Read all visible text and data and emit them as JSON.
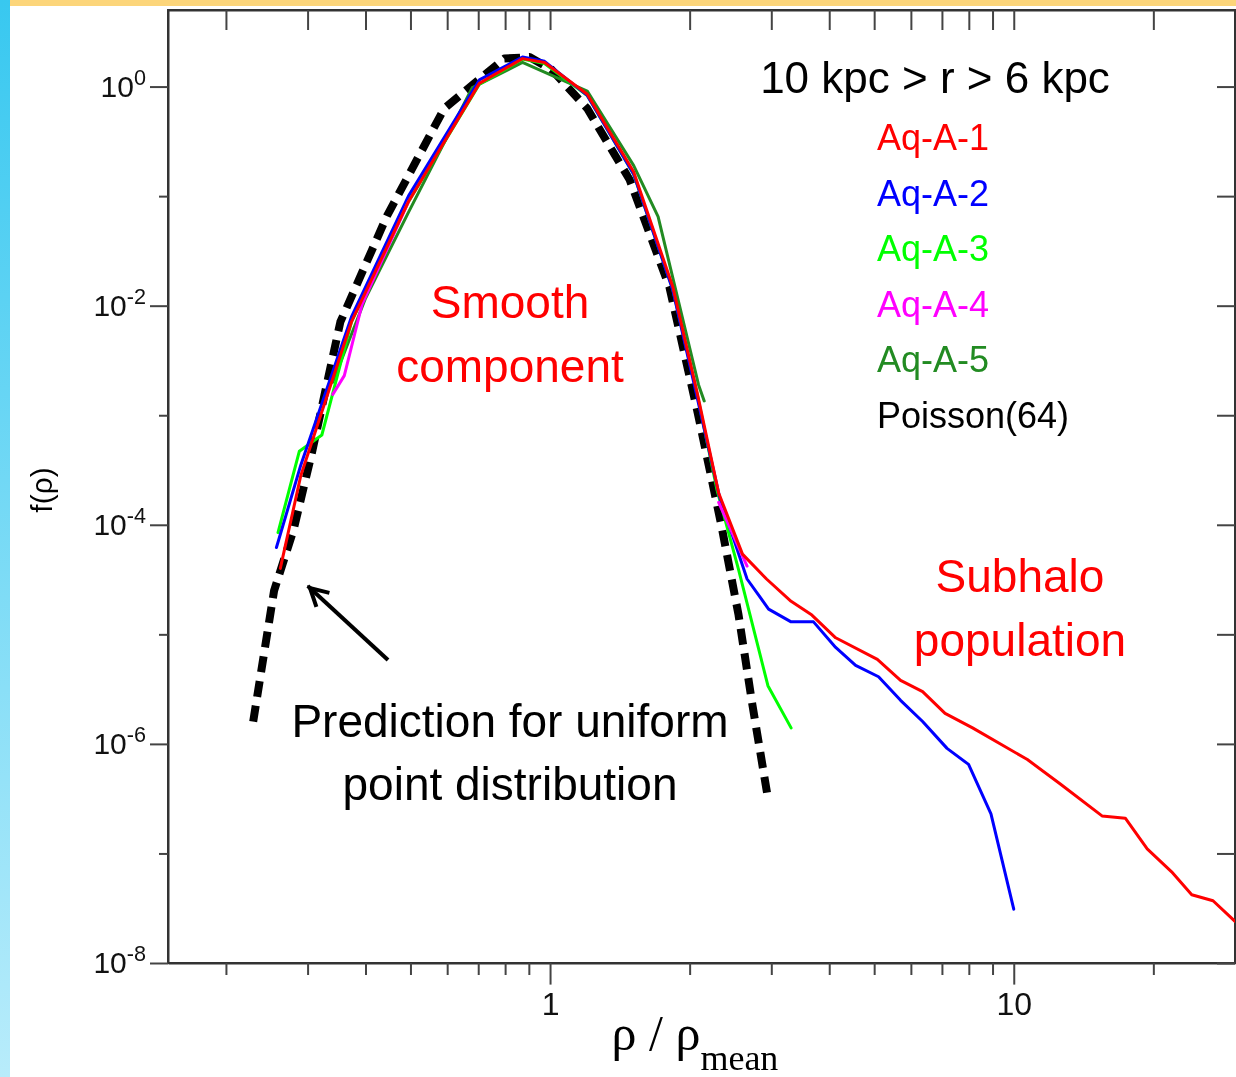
{
  "chart_data": {
    "type": "line",
    "log": "xy",
    "xlabel": "ρ / ρ$_{mean}$",
    "ylabel": "f(ρ)",
    "legend": "top right",
    "xlim": [
      0.15,
      30
    ],
    "ylim": [
      1e-08,
      5
    ],
    "xticks": [
      {
        "value": 0.2,
        "label": null
      },
      {
        "value": 0.3,
        "label": null
      },
      {
        "value": 0.4,
        "label": null
      },
      {
        "value": 0.5,
        "label": null
      },
      {
        "value": 0.6,
        "label": null
      },
      {
        "value": 0.7,
        "label": null
      },
      {
        "value": 0.8,
        "label": null
      },
      {
        "value": 0.9,
        "label": null
      },
      1,
      {
        "value": 2,
        "label": null
      },
      {
        "value": 3,
        "label": null
      },
      {
        "value": 4,
        "label": null
      },
      {
        "value": 5,
        "label": null
      },
      {
        "value": 6,
        "label": null
      },
      {
        "value": 7,
        "label": null
      },
      {
        "value": 8,
        "label": null
      },
      {
        "value": 9,
        "label": null
      },
      10,
      {
        "value": 20,
        "label": null
      }
    ],
    "yticks": [
      {
        "value": 1e-08,
        "label": "10$^{-8}$"
      },
      {
        "value": 1e-07,
        "label": null
      },
      {
        "value": 1e-06,
        "label": "10$^{-6}$"
      },
      {
        "value": 1e-05,
        "label": null
      },
      {
        "value": 0.0001,
        "label": "10$^{-4}$"
      },
      {
        "value": 0.001,
        "label": null
      },
      {
        "value": 0.01,
        "label": "10$^{-2}$"
      },
      {
        "value": 0.1,
        "label": null
      },
      {
        "value": 1,
        "label": "10$^{0}$"
      }
    ],
    "annotations": [
      "10 kpc > r > 6 kpc",
      "Smooth component",
      "Subhalo population",
      "Prediction for uniform point distribution"
    ],
    "series": [
      {
        "name": "Aq-A-1",
        "color": "#ff0000",
        "x": [
          0.262,
          0.29,
          0.373,
          0.495,
          0.704,
          0.872,
          0.973,
          1.203,
          1.515,
          1.84,
          2.08,
          2.31,
          2.6,
          2.93,
          3.31,
          3.67,
          4.13,
          5.08,
          5.7,
          6.36,
          7.11,
          8.15,
          10.7,
          12.6,
          15.5,
          17.4,
          19.4,
          21.9,
          24.2,
          26.9,
          30
        ],
        "values": [
          4e-05,
          0.00028,
          0.0071,
          0.089,
          1.07,
          1.8,
          1.66,
          0.85,
          0.166,
          0.0148,
          0.00155,
          0.000195,
          5.4e-05,
          3.2e-05,
          2e-05,
          1.5e-05,
          9.3e-06,
          5.9e-06,
          3.8e-06,
          3e-06,
          1.9e-06,
          1.4e-06,
          7.2e-07,
          4.3e-07,
          2.2e-07,
          2.1e-07,
          1.1e-07,
          6.8e-08,
          4.2e-08,
          3.7e-08,
          2.4e-08
        ]
      },
      {
        "name": "Aq-A-2",
        "color": "#0000ff",
        "x": [
          0.257,
          0.29,
          0.373,
          0.495,
          0.704,
          0.872,
          0.973,
          1.203,
          1.515,
          1.84,
          2.08,
          2.32,
          2.66,
          2.96,
          3.31,
          3.7,
          4.13,
          4.56,
          5.11,
          5.7,
          6.36,
          7.18,
          7.99,
          8.93,
          10
        ],
        "values": [
          6.2e-05,
          0.00035,
          0.0079,
          0.1,
          1.15,
          1.86,
          1.7,
          0.83,
          0.158,
          0.0138,
          0.0014,
          0.00018,
          3.2e-05,
          1.7e-05,
          1.3e-05,
          1.3e-05,
          7.6e-06,
          5.2e-06,
          4.1e-06,
          2.5e-06,
          1.6e-06,
          9.1e-07,
          6.5e-07,
          2.3e-07,
          3.1e-08
        ]
      },
      {
        "name": "Aq-A-3",
        "color": "#00ff00",
        "x": [
          0.259,
          0.288,
          0.322,
          0.373,
          0.495,
          0.704,
          0.872,
          0.973,
          1.203,
          1.515,
          1.84,
          2.08,
          2.29,
          2.55,
          2.95,
          3.31
        ],
        "values": [
          8.5e-05,
          0.00047,
          0.00066,
          0.0071,
          0.089,
          1.05,
          1.78,
          1.62,
          0.83,
          0.158,
          0.0141,
          0.0015,
          0.00021,
          3.9e-05,
          3.4e-06,
          1.4e-06
        ]
      },
      {
        "name": "Aq-A-4",
        "color": "#ff00ff",
        "x": [
          0.34,
          0.36,
          0.393,
          0.495,
          0.704,
          0.872,
          0.973,
          1.203,
          1.515,
          1.84,
          2.08,
          2.31,
          2.66
        ],
        "values": [
          0.00155,
          0.0023,
          0.0102,
          0.089,
          null,
          null,
          null,
          null,
          null,
          null,
          null,
          0.00016,
          4.2e-05
        ]
      },
      {
        "name": "Aq-A-5",
        "color": "#228b22",
        "x": [
          0.34,
          0.4,
          0.495,
          0.68,
          0.872,
          1.203,
          1.515,
          1.71,
          2.09,
          2.15
        ],
        "values": [
          0.002,
          0.0117,
          0.071,
          0.98,
          1.66,
          0.91,
          0.19,
          0.065,
          0.0019,
          0.00135
        ]
      },
      {
        "name": "Poisson(64)",
        "color": "#000000",
        "line_style": "dashed",
        "x": [
          0.229,
          0.254,
          0.28,
          0.306,
          0.353,
          0.445,
          0.591,
          0.797,
          0.903,
          1.007,
          1.203,
          1.485,
          1.809,
          2.08,
          2.34,
          2.55,
          2.73,
          2.95
        ],
        "values": [
          1.6e-06,
          2.5e-05,
          9.1e-05,
          0.00044,
          0.0071,
          0.066,
          0.63,
          1.8,
          1.86,
          1.43,
          0.63,
          0.141,
          0.0148,
          0.00107,
          0.0001,
          1.5e-05,
          2.3e-06,
          3.2e-07
        ]
      }
    ]
  }
}
